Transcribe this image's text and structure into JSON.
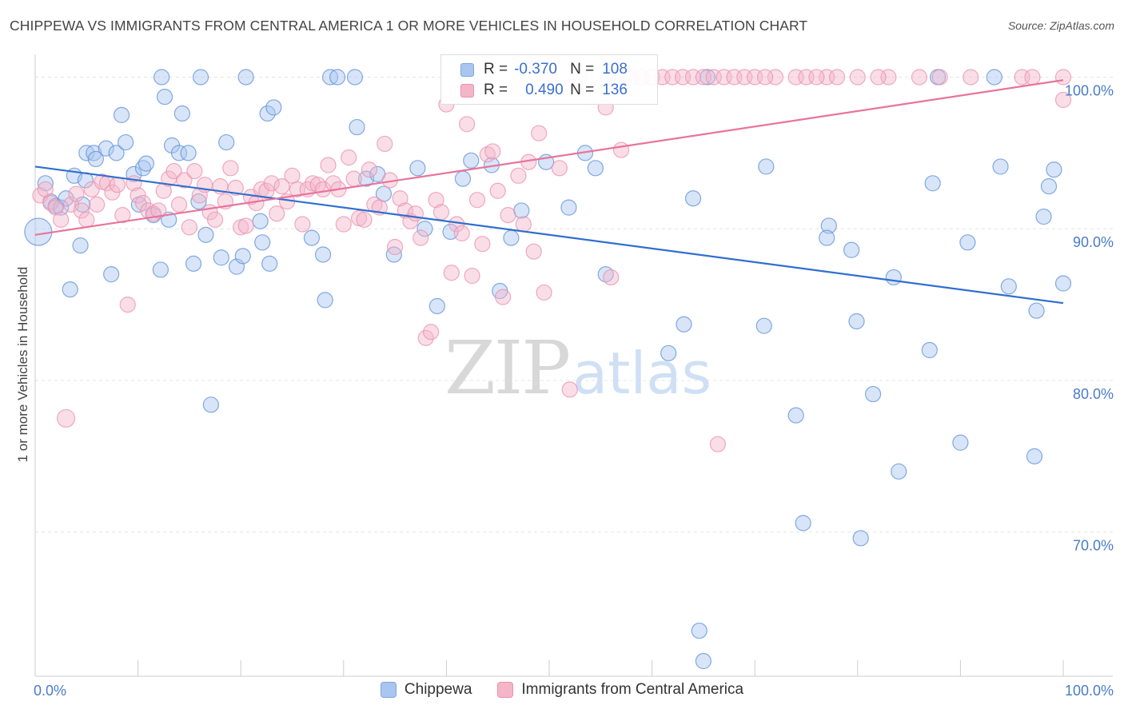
{
  "header": {
    "title": "CHIPPEWA VS IMMIGRANTS FROM CENTRAL AMERICA 1 OR MORE VEHICLES IN HOUSEHOLD CORRELATION CHART",
    "source": "Source: ZipAtlas.com"
  },
  "watermark": {
    "zip": "ZIP",
    "atlas": "atlas"
  },
  "legend": {
    "rows": [
      {
        "r_label": "R =",
        "r_value": "-0.370",
        "n_label": "N =",
        "n_value": "108",
        "color": "#a9c6f0"
      },
      {
        "r_label": "R =",
        "r_value": "0.490",
        "n_label": "N =",
        "n_value": "136",
        "color": "#f5b5c9"
      }
    ]
  },
  "bottom_legend": [
    {
      "label": "Chippewa",
      "color": "#a9c6f0"
    },
    {
      "label": "Immigrants from Central America",
      "color": "#f5b5c9"
    }
  ],
  "chart_data": {
    "type": "scatter",
    "ylabel": "1 or more Vehicles in Household",
    "x_tick_labels": [
      "0.0%",
      "100.0%"
    ],
    "y_tick_labels": [
      "100.0%",
      "90.0%",
      "80.0%",
      "70.0%"
    ],
    "xlim": [
      0,
      100
    ],
    "ylim": [
      60.5,
      101.5
    ],
    "y_grid_values": [
      100,
      90,
      80,
      70
    ],
    "grid": true,
    "legend_placement": "top-center",
    "series": [
      {
        "name": "Chippewa",
        "color": "#5b8fd9",
        "fill": "#a9c6f0",
        "trend": {
          "x": [
            0,
            100
          ],
          "y": [
            94.1,
            85.1
          ],
          "color": "#2f6fcf"
        },
        "points": [
          [
            0.3,
            89.8
          ],
          [
            1,
            93
          ],
          [
            1.5,
            91.8
          ],
          [
            2,
            91.5
          ],
          [
            2.5,
            91.4
          ],
          [
            3,
            92
          ],
          [
            3.4,
            86
          ],
          [
            3.8,
            93.5
          ],
          [
            4.4,
            88.9
          ],
          [
            4.6,
            91.6
          ],
          [
            5,
            95
          ],
          [
            5.7,
            95
          ],
          [
            5.9,
            94.6
          ],
          [
            6.9,
            95.3
          ],
          [
            7.4,
            87
          ],
          [
            7.9,
            95
          ],
          [
            8.4,
            97.5
          ],
          [
            8.8,
            95.7
          ],
          [
            9.6,
            93.6
          ],
          [
            10.1,
            91.6
          ],
          [
            10.5,
            94
          ],
          [
            10.8,
            94.3
          ],
          [
            11.5,
            90.9
          ],
          [
            12.2,
            87.3
          ],
          [
            12.6,
            98.7
          ],
          [
            13,
            90.6
          ],
          [
            13.3,
            95.5
          ],
          [
            14,
            95
          ],
          [
            14.3,
            97.6
          ],
          [
            14.9,
            95
          ],
          [
            15.4,
            87.7
          ],
          [
            15.9,
            91.8
          ],
          [
            16.6,
            89.6
          ],
          [
            17.1,
            78.4
          ],
          [
            18.1,
            88.1
          ],
          [
            18.6,
            95.7
          ],
          [
            19.6,
            87.5
          ],
          [
            20.2,
            88.2
          ],
          [
            20.5,
            100
          ],
          [
            21.9,
            90.5
          ],
          [
            22.1,
            89.1
          ],
          [
            22.6,
            97.6
          ],
          [
            22.8,
            87.7
          ],
          [
            23.2,
            98
          ],
          [
            16.1,
            100
          ],
          [
            26.9,
            89.4
          ],
          [
            28,
            88.3
          ],
          [
            28.2,
            85.3
          ],
          [
            28.7,
            100
          ],
          [
            29.4,
            100
          ],
          [
            31.1,
            100
          ],
          [
            31.3,
            96.7
          ],
          [
            32.2,
            93.3
          ],
          [
            33.3,
            93.6
          ],
          [
            33.9,
            92.3
          ],
          [
            34.9,
            88.3
          ],
          [
            37.2,
            94
          ],
          [
            37.9,
            90
          ],
          [
            39.1,
            84.9
          ],
          [
            40.4,
            89.8
          ],
          [
            41.6,
            93.3
          ],
          [
            42,
            100
          ],
          [
            42.4,
            94.5
          ],
          [
            44.4,
            94.2
          ],
          [
            45.2,
            85.9
          ],
          [
            46.3,
            89.4
          ],
          [
            47.3,
            91.2
          ],
          [
            49.7,
            94.4
          ],
          [
            51.9,
            91.4
          ],
          [
            53.5,
            95
          ],
          [
            54.5,
            94
          ],
          [
            55.5,
            87
          ],
          [
            55.7,
            100
          ],
          [
            56.3,
            100
          ],
          [
            61.6,
            81.8
          ],
          [
            63.1,
            83.7
          ],
          [
            64,
            92
          ],
          [
            64.6,
            63.5
          ],
          [
            65,
            61.5
          ],
          [
            65.4,
            100
          ],
          [
            71.1,
            94.1
          ],
          [
            70.9,
            83.6
          ],
          [
            74,
            77.7
          ],
          [
            74.7,
            70.6
          ],
          [
            77.2,
            90.2
          ],
          [
            77,
            89.4
          ],
          [
            79.4,
            88.6
          ],
          [
            79.9,
            83.9
          ],
          [
            80.3,
            69.6
          ],
          [
            81.5,
            79.1
          ],
          [
            83.5,
            86.8
          ],
          [
            84,
            74
          ],
          [
            87,
            82
          ],
          [
            87.3,
            93
          ],
          [
            87.8,
            100
          ],
          [
            90,
            75.9
          ],
          [
            90.7,
            89.1
          ],
          [
            93.3,
            100
          ],
          [
            93.9,
            94.1
          ],
          [
            94.7,
            86.2
          ],
          [
            97.2,
            75
          ],
          [
            97.4,
            84.6
          ],
          [
            98.1,
            90.8
          ],
          [
            98.6,
            92.8
          ],
          [
            99.1,
            93.9
          ],
          [
            100,
            86.4
          ],
          [
            12.3,
            100
          ],
          [
            4.9,
            93.2
          ]
        ]
      },
      {
        "name": "Immigrants from Central America",
        "color": "#ea8fae",
        "fill": "#f5b5c9",
        "trend": {
          "x": [
            0,
            100
          ],
          "y": [
            89.6,
            99.8
          ],
          "color": "#e8749b"
        },
        "points": [
          [
            0.5,
            92.2
          ],
          [
            1,
            92.6
          ],
          [
            1.5,
            91.7
          ],
          [
            2,
            91.4
          ],
          [
            2.5,
            90.6
          ],
          [
            3,
            77.5
          ],
          [
            3.5,
            91.6
          ],
          [
            4,
            92.3
          ],
          [
            4.5,
            91.2
          ],
          [
            5,
            90.6
          ],
          [
            5.5,
            92.6
          ],
          [
            6,
            91.6
          ],
          [
            6.5,
            93.1
          ],
          [
            7,
            93
          ],
          [
            7.5,
            92.4
          ],
          [
            8,
            92.9
          ],
          [
            8.5,
            90.9
          ],
          [
            9,
            85
          ],
          [
            9.6,
            93
          ],
          [
            10,
            92.2
          ],
          [
            10.5,
            91.7
          ],
          [
            11,
            91.2
          ],
          [
            11.5,
            91
          ],
          [
            12,
            91.2
          ],
          [
            12.5,
            92.5
          ],
          [
            13,
            93.3
          ],
          [
            13.5,
            93.8
          ],
          [
            14,
            91.6
          ],
          [
            14.5,
            93.2
          ],
          [
            15,
            90.1
          ],
          [
            15.5,
            93.8
          ],
          [
            16,
            92.2
          ],
          [
            16.5,
            92.9
          ],
          [
            17,
            91.1
          ],
          [
            17.5,
            90.6
          ],
          [
            18,
            92.8
          ],
          [
            18.5,
            91.8
          ],
          [
            19,
            94
          ],
          [
            19.5,
            92.7
          ],
          [
            20,
            90.1
          ],
          [
            20.5,
            90.2
          ],
          [
            21,
            92.1
          ],
          [
            21.5,
            91.7
          ],
          [
            22,
            92.6
          ],
          [
            22.5,
            92.5
          ],
          [
            23,
            93
          ],
          [
            23.5,
            91
          ],
          [
            24,
            92.8
          ],
          [
            24.5,
            91.8
          ],
          [
            25,
            93.5
          ],
          [
            25.5,
            92.6
          ],
          [
            26,
            90.3
          ],
          [
            26.5,
            92.6
          ],
          [
            27,
            93
          ],
          [
            27.5,
            92.9
          ],
          [
            28,
            92.6
          ],
          [
            28.5,
            94.2
          ],
          [
            29,
            93
          ],
          [
            29.5,
            92.6
          ],
          [
            30,
            90.3
          ],
          [
            30.5,
            94.7
          ],
          [
            31,
            93.3
          ],
          [
            31.5,
            90.7
          ],
          [
            32,
            90.6
          ],
          [
            32.5,
            93.9
          ],
          [
            33,
            91.6
          ],
          [
            33.5,
            91.4
          ],
          [
            34,
            95.6
          ],
          [
            34.5,
            93.2
          ],
          [
            35,
            88.8
          ],
          [
            35.5,
            92
          ],
          [
            36,
            91.2
          ],
          [
            36.5,
            90.5
          ],
          [
            37,
            91
          ],
          [
            37.5,
            89.4
          ],
          [
            38,
            82.8
          ],
          [
            38.5,
            83.2
          ],
          [
            39,
            91.9
          ],
          [
            39.5,
            91.1
          ],
          [
            40,
            98.2
          ],
          [
            40.5,
            87.1
          ],
          [
            41,
            90.3
          ],
          [
            41.5,
            89.7
          ],
          [
            42,
            96.9
          ],
          [
            42.5,
            86.9
          ],
          [
            43,
            91.9
          ],
          [
            43.5,
            89
          ],
          [
            44,
            94.9
          ],
          [
            44.5,
            95.1
          ],
          [
            45,
            92.5
          ],
          [
            45.5,
            85.5
          ],
          [
            46,
            90.9
          ],
          [
            47,
            93.5
          ],
          [
            47.5,
            90.3
          ],
          [
            48,
            94.4
          ],
          [
            48.5,
            88.5
          ],
          [
            49,
            96.3
          ],
          [
            49.5,
            85.8
          ],
          [
            50,
            100
          ],
          [
            51,
            94
          ],
          [
            52,
            79.4
          ],
          [
            53,
            100
          ],
          [
            55.5,
            98
          ],
          [
            56,
            86.8
          ],
          [
            57,
            95.2
          ],
          [
            58,
            100
          ],
          [
            59,
            100
          ],
          [
            60,
            100
          ],
          [
            61,
            100
          ],
          [
            62,
            100
          ],
          [
            63,
            100
          ],
          [
            64,
            100
          ],
          [
            65,
            100
          ],
          [
            66,
            100
          ],
          [
            67,
            100
          ],
          [
            68,
            100
          ],
          [
            69,
            100
          ],
          [
            70,
            100
          ],
          [
            72,
            100
          ],
          [
            74,
            100
          ],
          [
            75,
            100
          ],
          [
            77,
            100
          ],
          [
            78,
            100
          ],
          [
            80,
            100
          ],
          [
            83,
            100
          ],
          [
            88,
            100
          ],
          [
            91,
            100
          ],
          [
            96,
            100
          ],
          [
            100,
            98.5
          ],
          [
            66.4,
            75.8
          ],
          [
            100,
            100
          ],
          [
            97,
            100
          ],
          [
            86,
            100
          ],
          [
            82,
            100
          ],
          [
            76,
            100
          ],
          [
            71,
            100
          ]
        ]
      }
    ]
  }
}
